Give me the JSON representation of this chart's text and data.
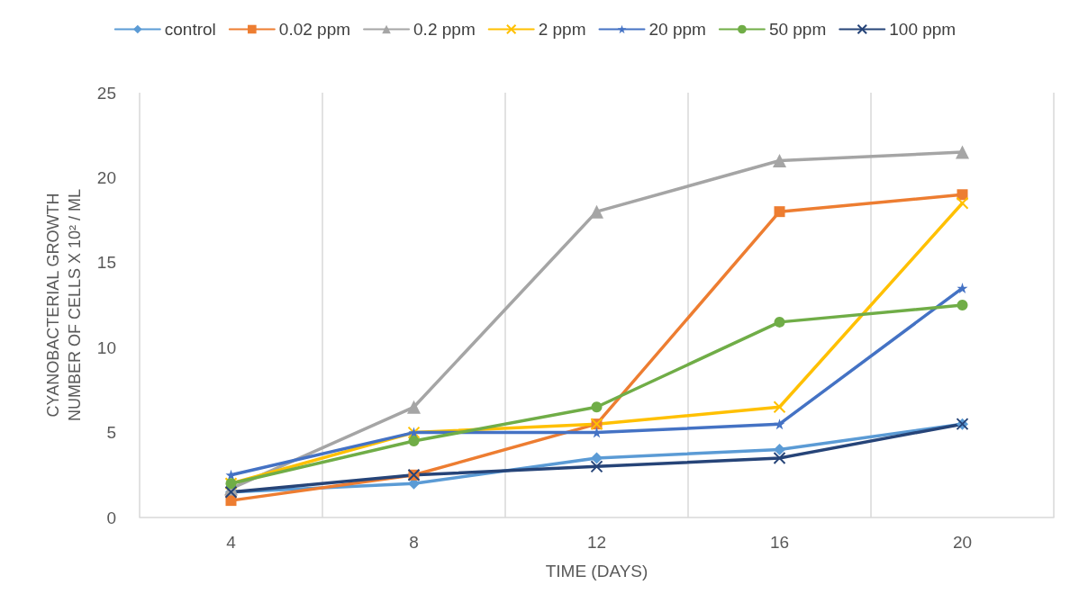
{
  "chart_data": {
    "type": "line",
    "xlabel": "TIME (DAYS)",
    "ylabel": "CYANOBACTERIAL GROWTH\nNUMBER OF CELLS X 10² / ML",
    "categories": [
      "4",
      "8",
      "12",
      "16",
      "20"
    ],
    "ylim": [
      0,
      25
    ],
    "yticks": [
      0,
      5,
      10,
      15,
      20,
      25
    ],
    "grid": "x",
    "legend": "top",
    "line_style": "solid",
    "series": [
      {
        "name": "control",
        "color": "#5b9bd5",
        "marker": "diamond",
        "values": [
          1.5,
          2,
          3.5,
          4,
          5.5
        ]
      },
      {
        "name": "0.02 ppm",
        "color": "#ed7d31",
        "marker": "square",
        "values": [
          1,
          2.5,
          5.5,
          18,
          19
        ]
      },
      {
        "name": "0.2 ppm",
        "color": "#a5a5a5",
        "marker": "triangle",
        "values": [
          1.7,
          6.5,
          18,
          21,
          21.5
        ]
      },
      {
        "name": "2 ppm",
        "color": "#ffc000",
        "marker": "cross",
        "values": [
          2,
          5,
          5.5,
          6.5,
          18.5
        ]
      },
      {
        "name": "20 ppm",
        "color": "#4472c4",
        "marker": "star",
        "values": [
          2.5,
          5,
          5,
          5.5,
          13.5
        ]
      },
      {
        "name": "50 ppm",
        "color": "#70ad47",
        "marker": "circle",
        "values": [
          2,
          4.5,
          6.5,
          11.5,
          12.5
        ]
      },
      {
        "name": "100 ppm",
        "color": "#264478",
        "marker": "cross",
        "values": [
          1.5,
          2.5,
          3,
          3.5,
          5.5
        ]
      }
    ]
  }
}
